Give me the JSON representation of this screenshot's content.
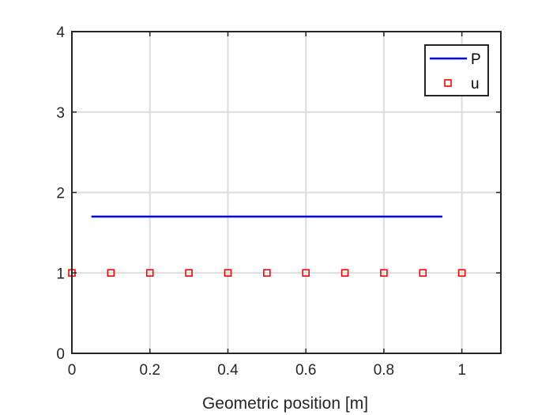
{
  "chart_data": {
    "type": "line",
    "title": "",
    "xlabel": "Geometric position [m]",
    "ylabel": "",
    "xlim": [
      0,
      1.1
    ],
    "ylim": [
      0,
      4
    ],
    "xticks": [
      0,
      0.2,
      0.4,
      0.6,
      0.8,
      1
    ],
    "xtick_labels": [
      "0",
      "0.2",
      "0.4",
      "0.6",
      "0.8",
      "1"
    ],
    "yticks": [
      0,
      1,
      2,
      3,
      4
    ],
    "ytick_labels": [
      "0",
      "1",
      "2",
      "3",
      "4"
    ],
    "grid": true,
    "legend_position": "top-right",
    "series": [
      {
        "name": "P",
        "style": "line",
        "color": "#0000ff",
        "x": [
          0.05,
          0.95
        ],
        "y": [
          1.7,
          1.7
        ]
      },
      {
        "name": "u",
        "style": "square-marker",
        "color": "#ff0000",
        "x": [
          0,
          0.1,
          0.2,
          0.3,
          0.4,
          0.5,
          0.6,
          0.7,
          0.8,
          0.9,
          1.0
        ],
        "y": [
          1,
          1,
          1,
          1,
          1,
          1,
          1,
          1,
          1,
          1,
          1
        ]
      }
    ]
  }
}
